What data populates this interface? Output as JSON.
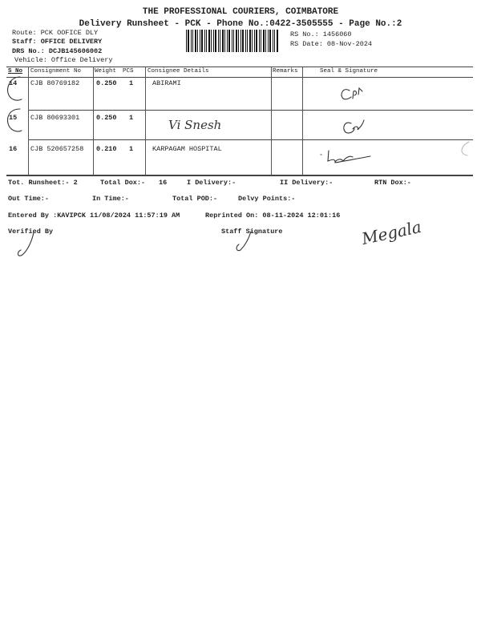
{
  "header": {
    "company": "THE PROFESSIONAL COURIERS, COIMBATORE",
    "subtitle": "Delivery Runsheet - PCK - Phone No.:0422-3505555 - Page No.:2",
    "route": "Route: PCK OOFICE DLY",
    "staff": "Staff: OFFICE DELIVERY",
    "drs_no": "DRS No.: DCJB145606002",
    "vehicle": "Vehicle: Office Delivery",
    "rs_no": "RS No.: 1456060",
    "rs_date": "RS Date: 08-Nov-2024"
  },
  "table": {
    "columns": [
      "S No",
      "Consignment No",
      "Weight",
      "PCS",
      "Consignee Details",
      "Remarks",
      "Seal & Signature"
    ],
    "rows": [
      {
        "sno": "14",
        "consignment": "CJB 80769182",
        "weight": "0.250",
        "pcs": "1",
        "consignee": "ABIRAMI",
        "signature": "Cpl"
      },
      {
        "sno": "15",
        "consignment": "CJB 80693301",
        "weight": "0.250",
        "pcs": "1",
        "consignee": "",
        "handwritten_consignee": "Vi Snesh",
        "signature": "Cpl"
      },
      {
        "sno": "16",
        "consignment": "CJB 520657258",
        "weight": "0.210",
        "pcs": "1",
        "consignee": "KARPAGAM HOSPITAL",
        "signature": "lal"
      }
    ]
  },
  "footer": {
    "tot_runsheet": "Tot. Runsheet:- 2",
    "total_dox": "Total Dox:-",
    "total_dox_value": "16",
    "i_delivery": "I Delivery:-",
    "ii_delivery": "II Delivery:-",
    "rtn_dox": "RTN Dox:-",
    "out_time": "Out Time:-",
    "in_time": "In Time:-",
    "total_pod": "Total POD:-",
    "delvy_points": "Delvy Points:-",
    "entered_by": "Entered By :KAVIPCK 11/08/2024 11:57:19 AM",
    "reprinted_on": "Reprinted On: 08-11-2024 12:01:16",
    "verified_by": "Verified By",
    "staff_signature": "Staff Signature",
    "handwritten_name": "Megala"
  }
}
